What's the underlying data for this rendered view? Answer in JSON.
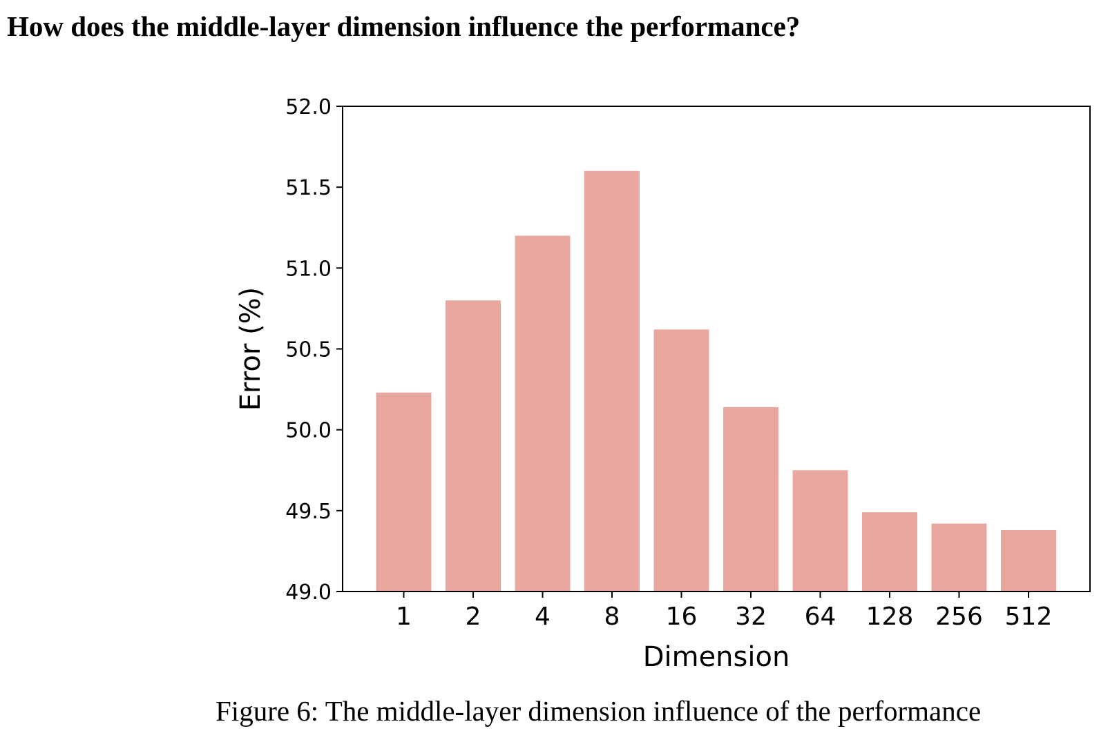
{
  "section_heading": "How does the middle-layer dimension influence the performance?",
  "caption": "Figure 6: The middle-layer dimension influence of the performance",
  "colors": {
    "bar": "#e8a8a0",
    "axis": "#000000"
  },
  "chart_data": {
    "type": "bar",
    "title": "",
    "xlabel": "Dimension",
    "ylabel": "Error (%)",
    "categories": [
      "1",
      "2",
      "4",
      "8",
      "16",
      "32",
      "64",
      "128",
      "256",
      "512"
    ],
    "values": [
      50.23,
      50.8,
      51.2,
      51.6,
      50.62,
      50.14,
      49.75,
      49.49,
      49.42,
      49.38
    ],
    "ylim": [
      49.0,
      52.0
    ],
    "yticks": [
      "49.0",
      "49.5",
      "50.0",
      "50.5",
      "51.0",
      "51.5",
      "52.0"
    ],
    "grid": false,
    "legend": "none"
  }
}
